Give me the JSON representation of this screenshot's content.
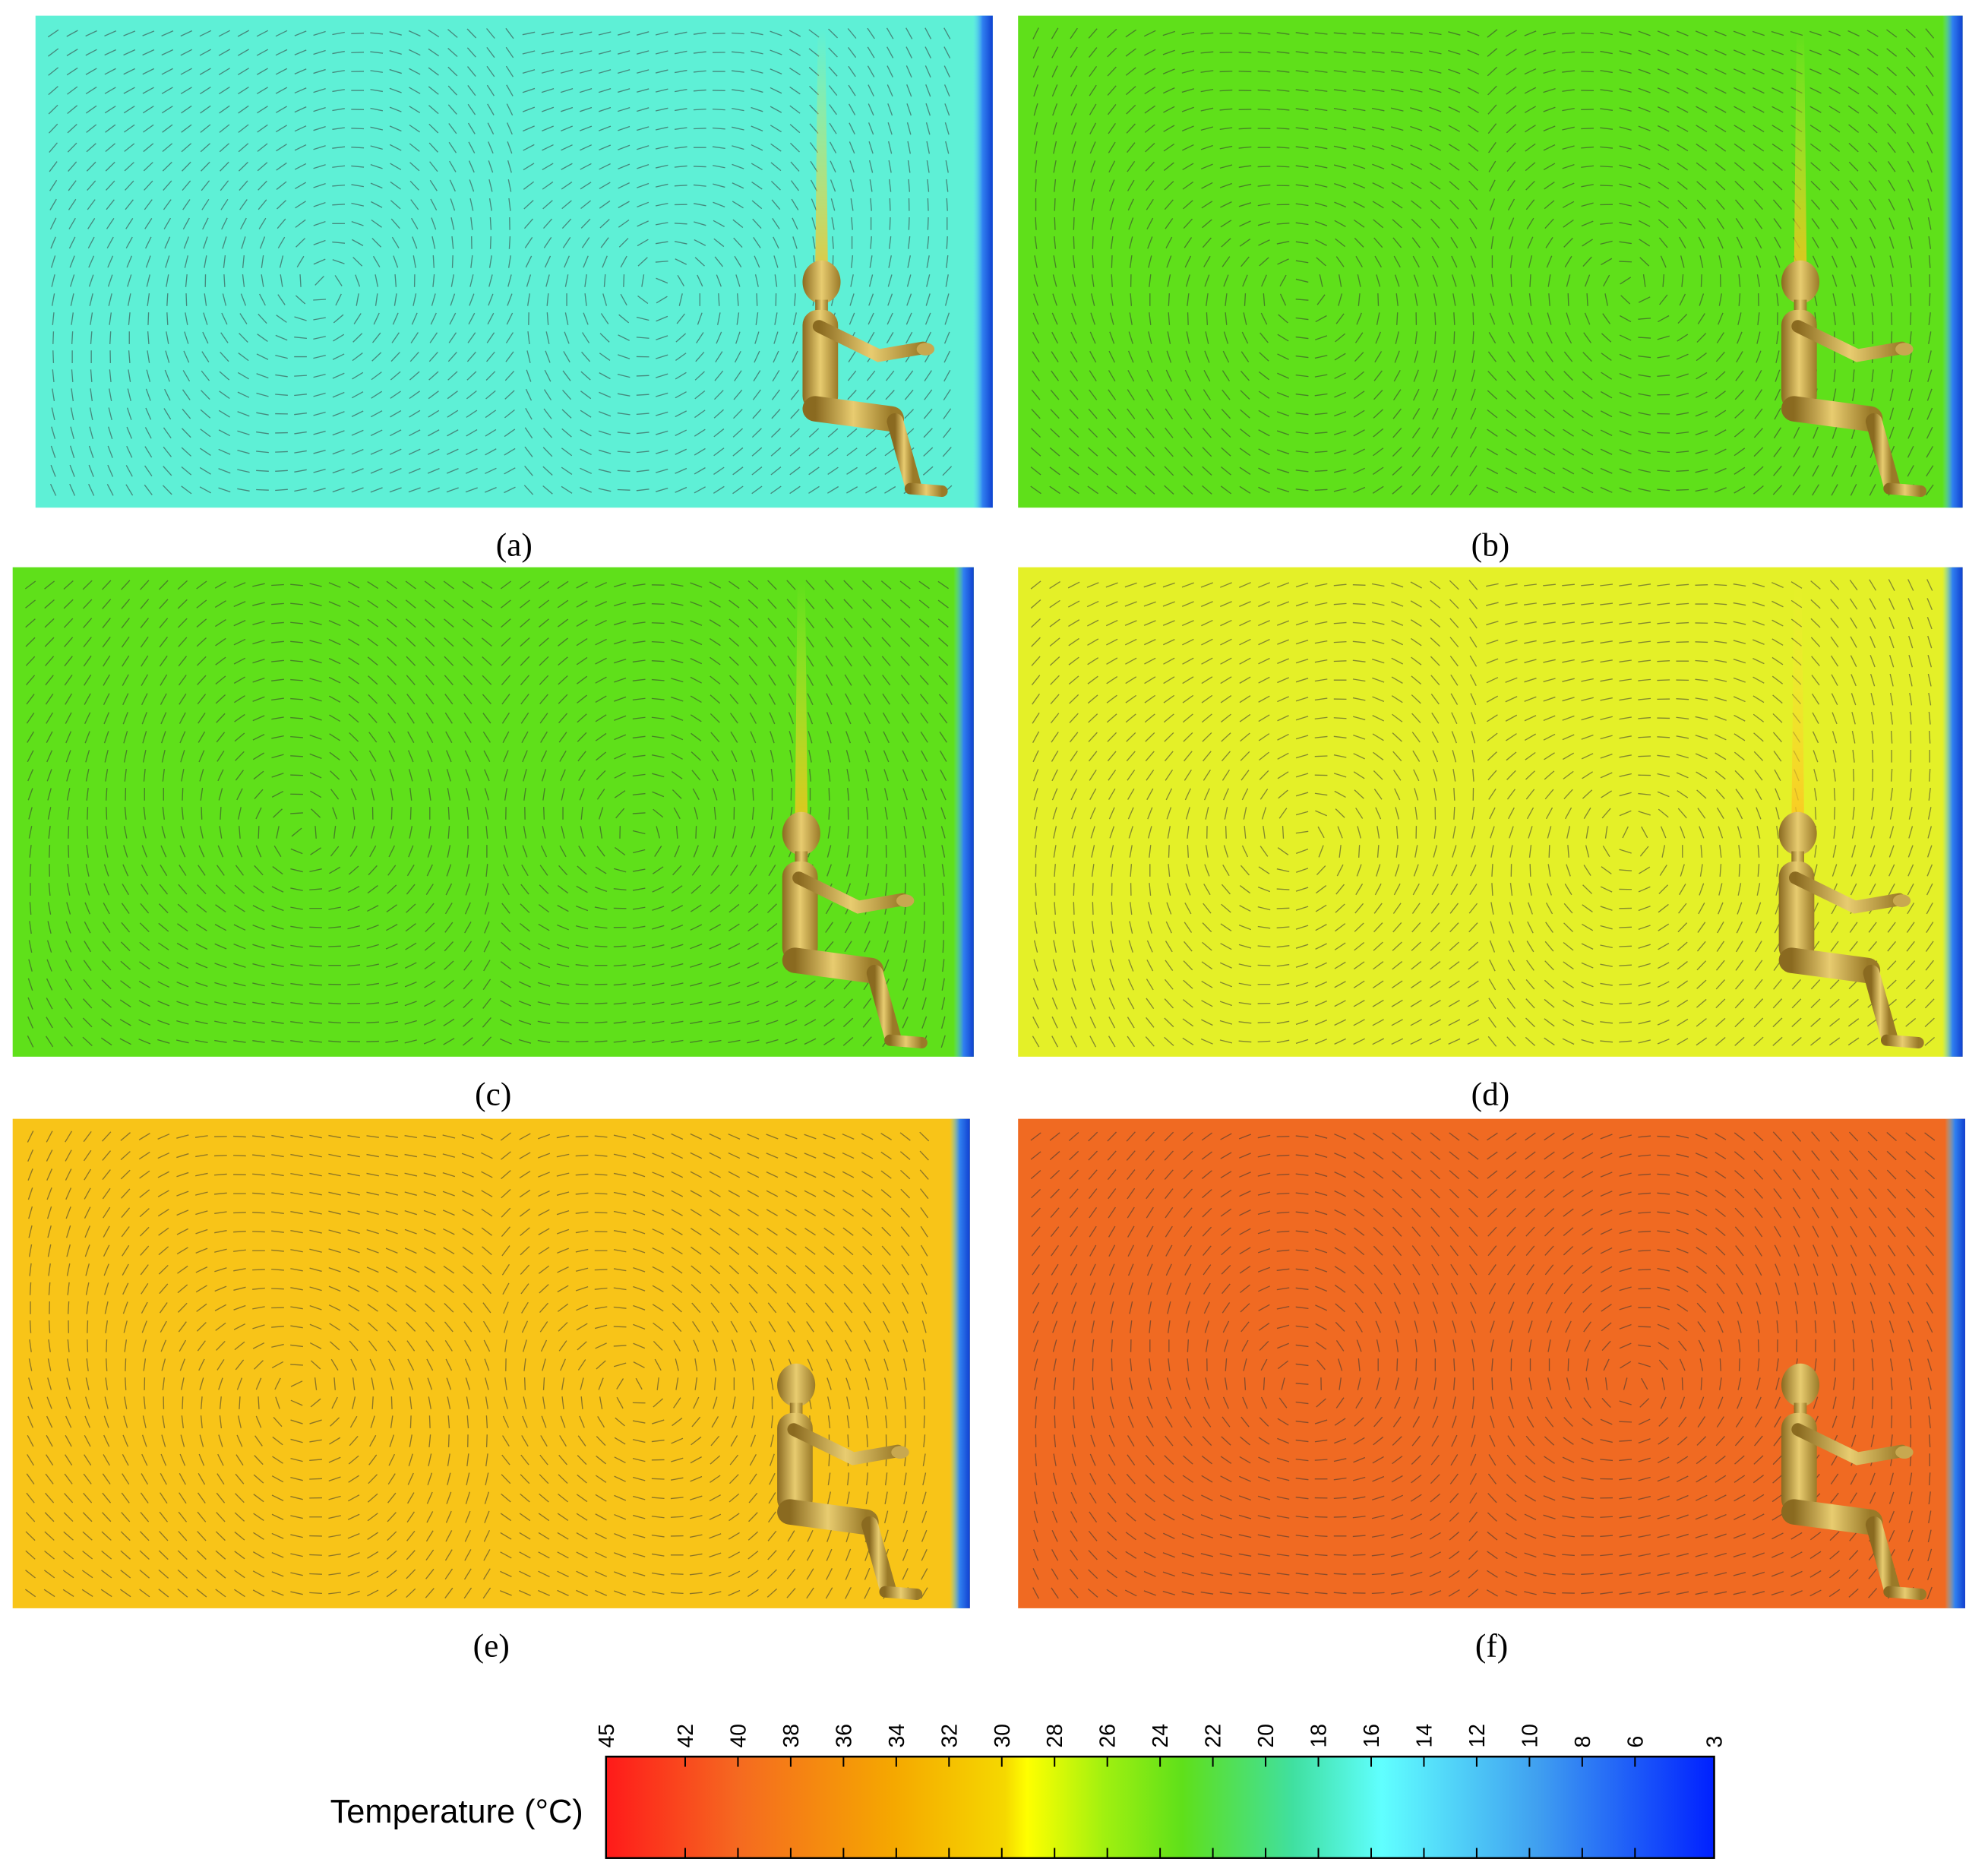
{
  "panels": [
    {
      "label": "(a)"
    },
    {
      "label": "(b)"
    },
    {
      "label": "(c)"
    },
    {
      "label": "(d)"
    },
    {
      "label": "(e)"
    },
    {
      "label": "(f)"
    }
  ],
  "colorbar": {
    "title": "Temperature (°C)",
    "lim": [
      45,
      3
    ],
    "ticks": [
      45,
      42,
      40,
      38,
      36,
      34,
      32,
      30,
      28,
      26,
      24,
      22,
      20,
      18,
      16,
      14,
      12,
      10,
      8,
      6,
      3
    ]
  }
}
